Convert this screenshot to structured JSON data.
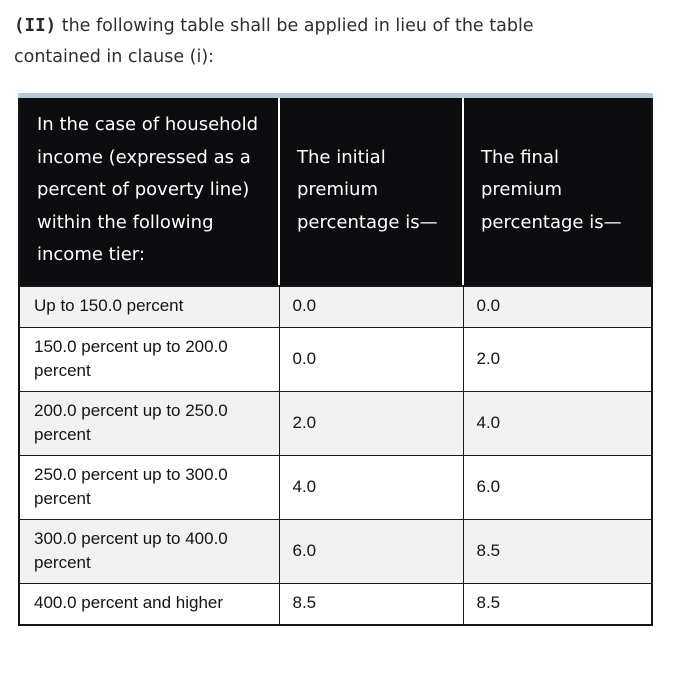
{
  "intro": {
    "clause": "(II)",
    "text": " the following table shall be applied in lieu of the table contained in clause (i):"
  },
  "table": {
    "accent_top_color": "#b4cad7",
    "header_bg": "#0c0c0e",
    "header_text_color": "#ffffff",
    "stripe_color": "#f2f2f2",
    "border_color": "#161616",
    "columns": [
      "In the case of household income (expressed as a percent of poverty line) within the following income tier:",
      "The initial premium percentage is—",
      "The final premium percentage is—"
    ],
    "rows": [
      {
        "tier": "Up to 150.0 percent",
        "initial": "0.0",
        "final": "0.0"
      },
      {
        "tier": "150.0 percent up to 200.0 percent",
        "initial": "0.0",
        "final": "2.0"
      },
      {
        "tier": "200.0 percent up to 250.0 percent",
        "initial": "2.0",
        "final": "4.0"
      },
      {
        "tier": "250.0 percent up to 300.0 percent",
        "initial": "4.0",
        "final": "6.0"
      },
      {
        "tier": "300.0 percent up to 400.0 percent",
        "initial": "6.0",
        "final": "8.5"
      },
      {
        "tier": "400.0 percent and higher",
        "initial": "8.5",
        "final": "8.5"
      }
    ]
  }
}
